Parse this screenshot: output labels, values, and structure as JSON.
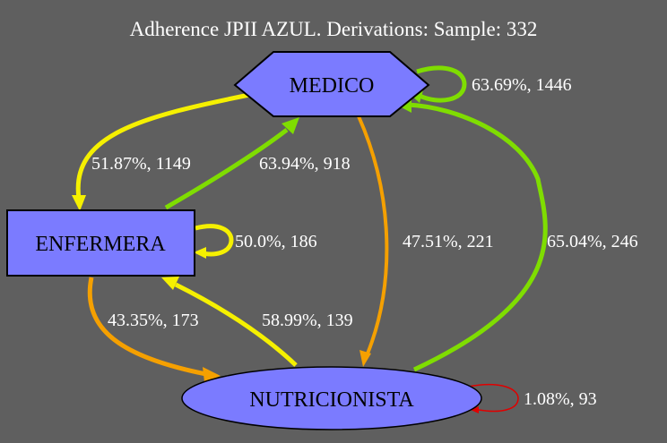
{
  "title": "Adherence JPII AZUL. Derivations: Sample: 332",
  "colors": {
    "background": "#5f5f5f",
    "node_fill": "#7b7bff",
    "yellow": "#f5f000",
    "green": "#7fdd00",
    "orange": "#f5a000",
    "red": "#e00000"
  },
  "nodes": {
    "medico": {
      "label": "MEDICO"
    },
    "enfermera": {
      "label": "ENFERMERA"
    },
    "nutricionista": {
      "label": "NUTRICIONISTA"
    }
  },
  "edges": {
    "medico_self": "63.69%, 1446",
    "medico_to_enfermera": "51.87%, 1149",
    "enfermera_to_medico": "63.94%, 918",
    "enfermera_self": "50.0%, 186",
    "medico_to_nutricionista": "47.51%, 221",
    "nutricionista_to_medico": "65.04%, 246",
    "enfermera_to_nutricionista": "43.35%, 173",
    "nutricionista_to_enfermera": "58.99%, 139",
    "nutricionista_self": "1.08%, 93"
  }
}
